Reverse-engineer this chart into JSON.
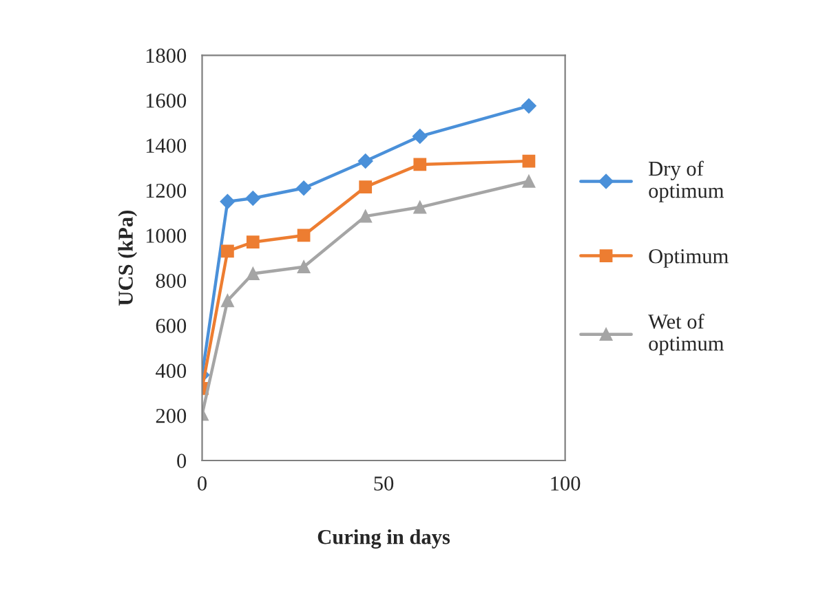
{
  "chart_data": {
    "type": "line",
    "xlabel": "Curing in days",
    "ylabel": "UCS (kPa)",
    "x": [
      0,
      7,
      14,
      28,
      45,
      60,
      90
    ],
    "series": [
      {
        "name": "Dry of\noptimum",
        "color": "#4a90d9",
        "marker": "diamond",
        "values": [
          380,
          1150,
          1165,
          1210,
          1330,
          1440,
          1575
        ]
      },
      {
        "name": "Optimum",
        "color": "#ed7d31",
        "marker": "square",
        "values": [
          320,
          930,
          970,
          1000,
          1215,
          1315,
          1330
        ]
      },
      {
        "name": "Wet of\noptimum",
        "color": "#a5a5a5",
        "marker": "triangle",
        "values": [
          205,
          710,
          830,
          860,
          1085,
          1125,
          1240
        ]
      }
    ],
    "xlim": [
      0,
      100
    ],
    "xticks": [
      0,
      50,
      100
    ],
    "ylim": [
      0,
      1800
    ],
    "yticks": [
      0,
      200,
      400,
      600,
      800,
      1000,
      1200,
      1400,
      1600,
      1800
    ],
    "grid": false,
    "legend": "right"
  }
}
